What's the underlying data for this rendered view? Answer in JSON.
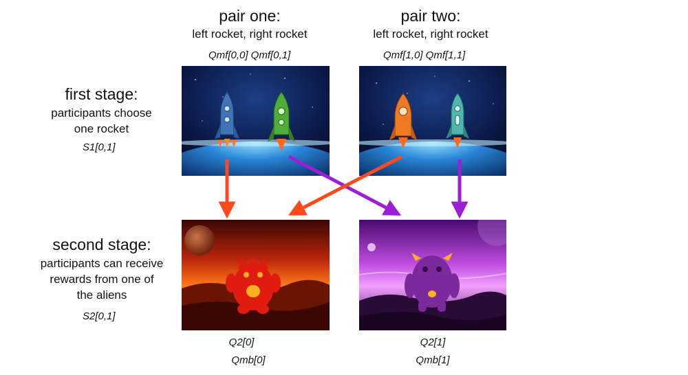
{
  "pairs": [
    {
      "title": "pair one:",
      "subtitle": "left rocket, right rocket",
      "q_labels": "Qmf[0,0] Qmf[0,1]"
    },
    {
      "title": "pair two:",
      "subtitle": "left rocket, right rocket",
      "q_labels": "Qmf[1,0] Qmf[1,1]"
    }
  ],
  "stages": [
    {
      "title": "first stage:",
      "lines": [
        "participants choose",
        "one rocket"
      ],
      "var": "S1[0,1]"
    },
    {
      "title": "second stage:",
      "lines": [
        "participants can receive",
        "rewards from one of",
        "the aliens"
      ],
      "var": "S2[0,1]"
    }
  ],
  "planets": [
    {
      "q2": "Q2[0]",
      "qmb": "Qmb[0]"
    },
    {
      "q2": "Q2[1]",
      "qmb": "Qmb[1]"
    }
  ],
  "colors": {
    "arrow_red": "#ff4a1c",
    "arrow_purple": "#9b1fd6",
    "rocket_blue": "#3f74b8",
    "rocket_green": "#4fae3a",
    "rocket_orange": "#ee7a24",
    "rocket_teal": "#4fb7ae",
    "alien_red": "#e01b10",
    "alien_purple": "#7a2a9c"
  },
  "arrows": [
    {
      "from": "pair-one-left-rocket",
      "to": "red-planet",
      "color": "red"
    },
    {
      "from": "pair-one-right-rocket",
      "to": "purple-planet",
      "color": "purple"
    },
    {
      "from": "pair-two-left-rocket",
      "to": "red-planet",
      "color": "red"
    },
    {
      "from": "pair-two-right-rocket",
      "to": "purple-planet",
      "color": "purple"
    }
  ]
}
